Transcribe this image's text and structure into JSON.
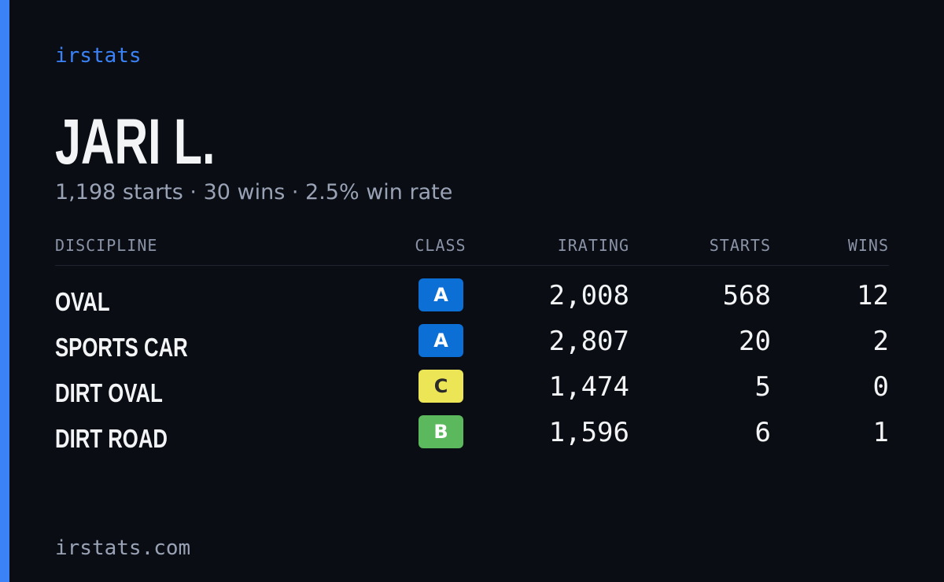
{
  "header": {
    "brand": "irstats",
    "name": "JARI L.",
    "summary": "1,198 starts · 30 wins · 2.5% win rate"
  },
  "table": {
    "columns": [
      "DISCIPLINE",
      "CLASS",
      "IRATING",
      "STARTS",
      "WINS"
    ],
    "rows": [
      {
        "discipline": "OVAL",
        "class": "A",
        "class_color": "#0b6fd6",
        "class_text_color": "#ffffff",
        "irating": "2,008",
        "starts": 568,
        "wins": 12
      },
      {
        "discipline": "SPORTS CAR",
        "class": "A",
        "class_color": "#0b6fd6",
        "class_text_color": "#ffffff",
        "irating": "2,807",
        "starts": 20,
        "wins": 2
      },
      {
        "discipline": "DIRT OVAL",
        "class": "C",
        "class_color": "#ece556",
        "class_text_color": "#2a2a2a",
        "irating": "1,474",
        "starts": 5,
        "wins": 0
      },
      {
        "discipline": "DIRT ROAD",
        "class": "B",
        "class_color": "#5cb85c",
        "class_text_color": "#ffffff",
        "irating": "1,596",
        "starts": 6,
        "wins": 1
      }
    ]
  },
  "footer": {
    "url": "irstats.com"
  }
}
